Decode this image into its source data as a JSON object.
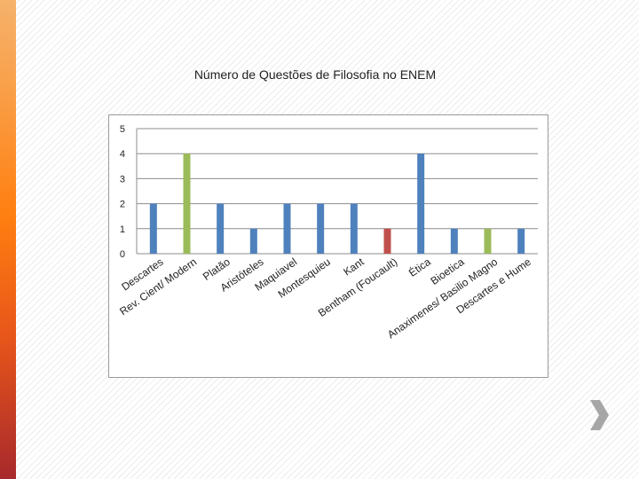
{
  "colors": {
    "blue": "#4f81bd",
    "green": "#9bbb59",
    "red": "#c0504d",
    "arrow": "#a6a6a6"
  },
  "icons": {
    "next": "chevron-right-icon"
  },
  "chart_data": {
    "type": "bar",
    "title": "Número de Questões de Filosofia no ENEM",
    "xlabel": "",
    "ylabel": "",
    "ylim": [
      0,
      5
    ],
    "yticks": [
      "0",
      "1",
      "2",
      "3",
      "4",
      "5"
    ],
    "grid": true,
    "legend": "none",
    "categories": [
      "Descartes",
      "Rev. Cient/ Modern",
      "Platão",
      "Aristóteles",
      "Maquiavel",
      "Montesquieu",
      "Kant",
      "Bentham (Foucault)",
      "Ética",
      "Bioetica",
      "Anaximenes/ Basilio Magno",
      "Descartes e Hume"
    ],
    "values": [
      2,
      4,
      2,
      1,
      2,
      2,
      2,
      1,
      4,
      1,
      1,
      1
    ],
    "bar_colors": [
      "#4f81bd",
      "#9bbb59",
      "#4f81bd",
      "#4f81bd",
      "#4f81bd",
      "#4f81bd",
      "#4f81bd",
      "#c0504d",
      "#4f81bd",
      "#4f81bd",
      "#9bbb59",
      "#4f81bd"
    ]
  }
}
